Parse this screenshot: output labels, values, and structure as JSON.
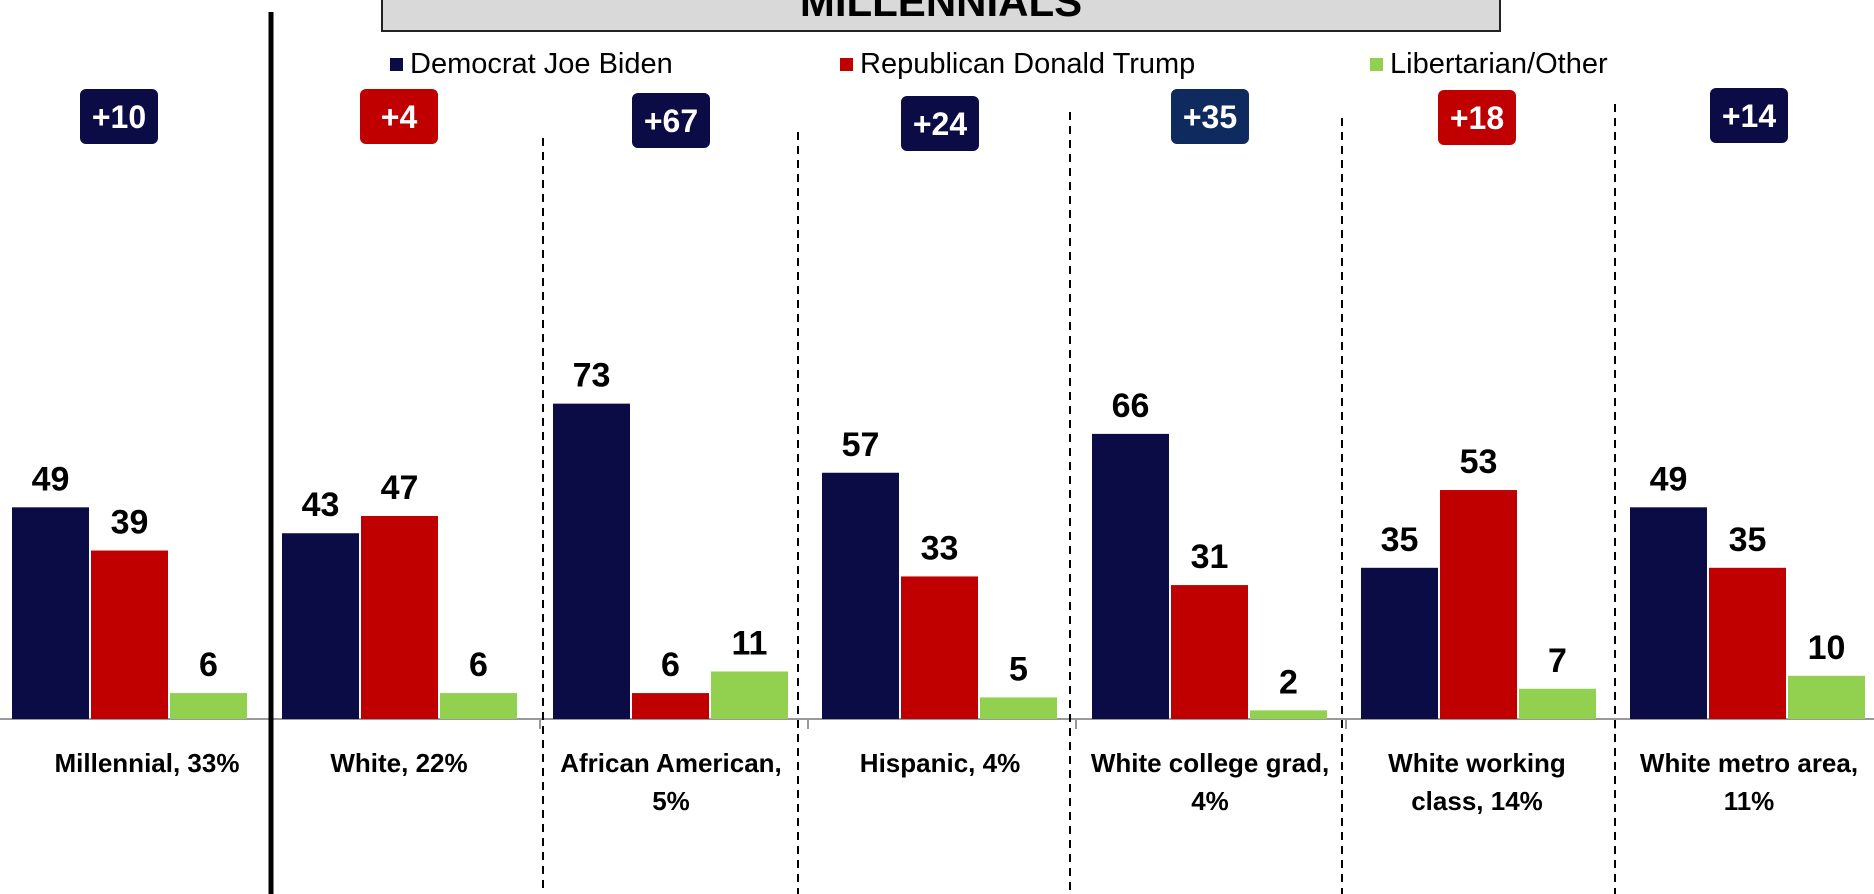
{
  "title": "MILLENNIALS",
  "legend": [
    {
      "label": "Democrat Joe Biden",
      "color": "#0b0b45"
    },
    {
      "label": "Republican Donald Trump",
      "color": "#c00000"
    },
    {
      "label": "Libertarian/Other",
      "color": "#92d050"
    }
  ],
  "badge_colors": {
    "dem": "#0b0b45",
    "rep": "#c00000",
    "dem_alt": "#0f2a5e"
  },
  "chart_data": {
    "type": "bar",
    "categories": [
      "Millennial, 33%",
      "White, 22%",
      "African American, 5%",
      "Hispanic, 4%",
      "White college grad, 4%",
      "White working class, 14%",
      "White metro area, 11%"
    ],
    "category_lines": [
      [
        "Millennial, 33%"
      ],
      [
        "White, 22%"
      ],
      [
        "African American,",
        "5%"
      ],
      [
        "Hispanic, 4%"
      ],
      [
        "White college grad,",
        "4%"
      ],
      [
        "White working",
        "class, 14%"
      ],
      [
        "White metro area,",
        "11%"
      ]
    ],
    "series": [
      {
        "name": "Democrat Joe Biden",
        "values": [
          49,
          43,
          73,
          57,
          66,
          35,
          49
        ]
      },
      {
        "name": "Republican Donald Trump",
        "values": [
          39,
          47,
          6,
          33,
          31,
          53,
          35
        ]
      },
      {
        "name": "Libertarian/Other",
        "values": [
          6,
          6,
          11,
          5,
          2,
          7,
          10
        ]
      }
    ],
    "margins": [
      "+10",
      "+4",
      "+67",
      "+24",
      "+35",
      "+18",
      "+14"
    ],
    "margin_party": [
      "dem",
      "rep",
      "dem",
      "dem",
      "dem_alt",
      "rep",
      "dem"
    ],
    "ylim": [
      0,
      100
    ]
  }
}
